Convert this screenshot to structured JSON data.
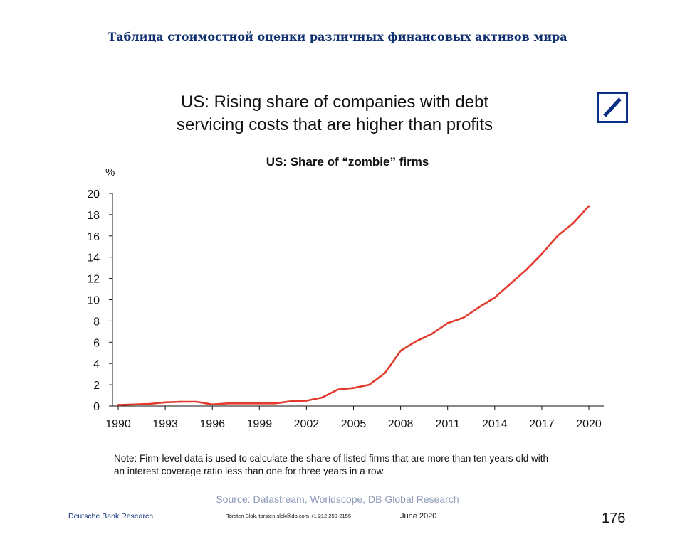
{
  "header": {
    "title": "Таблица стоимостной оценки различных финансовых активов мира"
  },
  "slide": {
    "title_line1": "US: Rising share of companies with debt",
    "title_line2": "servicing costs that are higher than profits",
    "logo_icon": "deutsche-bank-slash-logo",
    "note_line1": "Note: Firm-level data is used to calculate the share of listed firms that are more than ten years old with",
    "note_line2": "an interest coverage ratio less than one for three years in a row.",
    "source": "Source: Datastream, Worldscope, DB Global Research"
  },
  "footer": {
    "brand": "Deutsche Bank Research",
    "author": "Torsten Slok, torsten.slok@db.com  +1 212 250-2155",
    "date": "June 2020",
    "page": "176"
  },
  "colors": {
    "line": "#e23b2e",
    "brand": "#0a2d86",
    "header": "#0f2f6e"
  },
  "chart_data": {
    "type": "line",
    "title": "US: Share of “zombie” firms",
    "ylabel": "%",
    "xlabel": "",
    "xlim": [
      1990,
      2020
    ],
    "ylim": [
      0,
      20
    ],
    "x_ticks": [
      "1990",
      "1993",
      "1996",
      "1999",
      "2002",
      "2005",
      "2008",
      "2011",
      "2014",
      "2017",
      "2020"
    ],
    "y_ticks": [
      "0",
      "2",
      "4",
      "6",
      "8",
      "10",
      "12",
      "14",
      "16",
      "18",
      "20"
    ],
    "grid": false,
    "legend": "none",
    "series": [
      {
        "x": [
          1990,
          1991,
          1992,
          1993,
          1994,
          1995,
          1996,
          1997,
          1998,
          1999,
          2000,
          2001,
          2002,
          2003,
          2004,
          2005,
          2006,
          2007,
          2008,
          2009,
          2010,
          2011,
          2012,
          2013,
          2014,
          2015,
          2016,
          2017,
          2018,
          2019,
          2020
        ],
        "y": [
          0.1,
          0.15,
          0.2,
          0.35,
          0.4,
          0.4,
          0.15,
          0.25,
          0.25,
          0.25,
          0.25,
          0.45,
          0.5,
          0.8,
          1.55,
          1.7,
          2.0,
          3.1,
          5.2,
          6.1,
          6.8,
          7.8,
          8.3,
          9.3,
          10.2,
          11.5,
          12.8,
          14.3,
          16.0,
          17.2,
          18.8
        ]
      }
    ]
  }
}
